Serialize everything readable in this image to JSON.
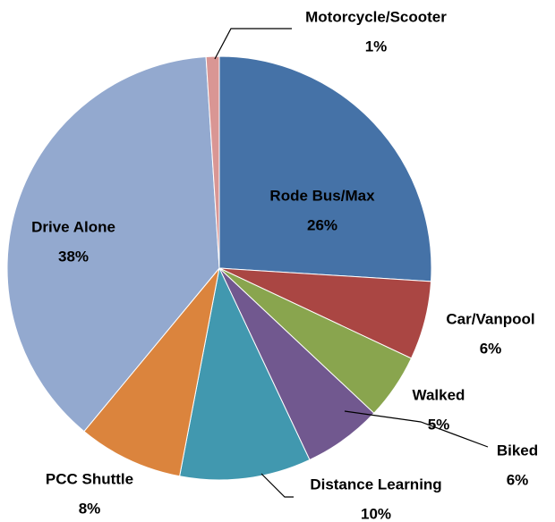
{
  "chart_data": {
    "type": "pie",
    "categories": [
      "Rode Bus/Max",
      "Car/Vanpool",
      "Walked",
      "Biked",
      "Distance Learning",
      "PCC Shuttle",
      "Drive Alone",
      "Motorcycle/Scooter"
    ],
    "values": [
      26,
      6,
      5,
      6,
      10,
      8,
      38,
      1
    ],
    "value_labels": [
      "26%",
      "6%",
      "5%",
      "6%",
      "10%",
      "8%",
      "38%",
      "1%"
    ],
    "colors": [
      "#4572a7",
      "#aa4643",
      "#89a54e",
      "#71588f",
      "#4198af",
      "#db843d",
      "#93a9cf",
      "#d99694"
    ]
  }
}
